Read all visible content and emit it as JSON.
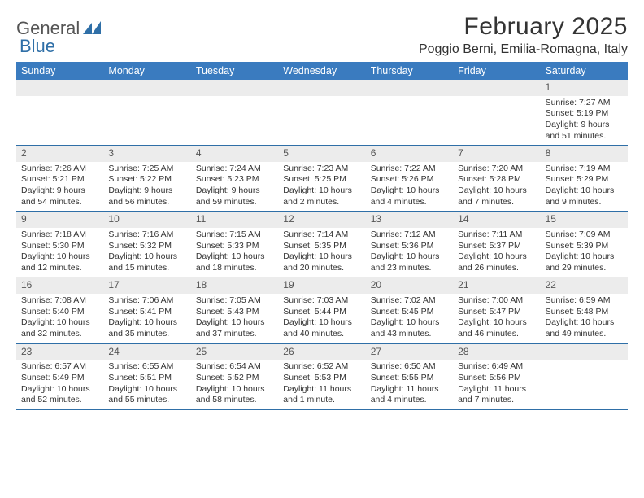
{
  "logo": {
    "text1": "General",
    "text2": "Blue"
  },
  "title": "February 2025",
  "location": "Poggio Berni, Emilia-Romagna, Italy",
  "colors": {
    "header_bg": "#3a7bbf",
    "header_text": "#ffffff",
    "daynum_bg": "#ececec",
    "border": "#2f6fa7",
    "logo_blue": "#2f6fa7",
    "text": "#333333"
  },
  "typography": {
    "title_fontsize": 30,
    "location_fontsize": 16,
    "weekday_fontsize": 12.5,
    "cell_fontsize": 10.5
  },
  "structure_type": "calendar",
  "weekdays": [
    "Sunday",
    "Monday",
    "Tuesday",
    "Wednesday",
    "Thursday",
    "Friday",
    "Saturday"
  ],
  "weeks": [
    [
      null,
      null,
      null,
      null,
      null,
      null,
      {
        "n": "1",
        "sunrise": "Sunrise: 7:27 AM",
        "sunset": "Sunset: 5:19 PM",
        "day1": "Daylight: 9 hours",
        "day2": "and 51 minutes."
      }
    ],
    [
      {
        "n": "2",
        "sunrise": "Sunrise: 7:26 AM",
        "sunset": "Sunset: 5:21 PM",
        "day1": "Daylight: 9 hours",
        "day2": "and 54 minutes."
      },
      {
        "n": "3",
        "sunrise": "Sunrise: 7:25 AM",
        "sunset": "Sunset: 5:22 PM",
        "day1": "Daylight: 9 hours",
        "day2": "and 56 minutes."
      },
      {
        "n": "4",
        "sunrise": "Sunrise: 7:24 AM",
        "sunset": "Sunset: 5:23 PM",
        "day1": "Daylight: 9 hours",
        "day2": "and 59 minutes."
      },
      {
        "n": "5",
        "sunrise": "Sunrise: 7:23 AM",
        "sunset": "Sunset: 5:25 PM",
        "day1": "Daylight: 10 hours",
        "day2": "and 2 minutes."
      },
      {
        "n": "6",
        "sunrise": "Sunrise: 7:22 AM",
        "sunset": "Sunset: 5:26 PM",
        "day1": "Daylight: 10 hours",
        "day2": "and 4 minutes."
      },
      {
        "n": "7",
        "sunrise": "Sunrise: 7:20 AM",
        "sunset": "Sunset: 5:28 PM",
        "day1": "Daylight: 10 hours",
        "day2": "and 7 minutes."
      },
      {
        "n": "8",
        "sunrise": "Sunrise: 7:19 AM",
        "sunset": "Sunset: 5:29 PM",
        "day1": "Daylight: 10 hours",
        "day2": "and 9 minutes."
      }
    ],
    [
      {
        "n": "9",
        "sunrise": "Sunrise: 7:18 AM",
        "sunset": "Sunset: 5:30 PM",
        "day1": "Daylight: 10 hours",
        "day2": "and 12 minutes."
      },
      {
        "n": "10",
        "sunrise": "Sunrise: 7:16 AM",
        "sunset": "Sunset: 5:32 PM",
        "day1": "Daylight: 10 hours",
        "day2": "and 15 minutes."
      },
      {
        "n": "11",
        "sunrise": "Sunrise: 7:15 AM",
        "sunset": "Sunset: 5:33 PM",
        "day1": "Daylight: 10 hours",
        "day2": "and 18 minutes."
      },
      {
        "n": "12",
        "sunrise": "Sunrise: 7:14 AM",
        "sunset": "Sunset: 5:35 PM",
        "day1": "Daylight: 10 hours",
        "day2": "and 20 minutes."
      },
      {
        "n": "13",
        "sunrise": "Sunrise: 7:12 AM",
        "sunset": "Sunset: 5:36 PM",
        "day1": "Daylight: 10 hours",
        "day2": "and 23 minutes."
      },
      {
        "n": "14",
        "sunrise": "Sunrise: 7:11 AM",
        "sunset": "Sunset: 5:37 PM",
        "day1": "Daylight: 10 hours",
        "day2": "and 26 minutes."
      },
      {
        "n": "15",
        "sunrise": "Sunrise: 7:09 AM",
        "sunset": "Sunset: 5:39 PM",
        "day1": "Daylight: 10 hours",
        "day2": "and 29 minutes."
      }
    ],
    [
      {
        "n": "16",
        "sunrise": "Sunrise: 7:08 AM",
        "sunset": "Sunset: 5:40 PM",
        "day1": "Daylight: 10 hours",
        "day2": "and 32 minutes."
      },
      {
        "n": "17",
        "sunrise": "Sunrise: 7:06 AM",
        "sunset": "Sunset: 5:41 PM",
        "day1": "Daylight: 10 hours",
        "day2": "and 35 minutes."
      },
      {
        "n": "18",
        "sunrise": "Sunrise: 7:05 AM",
        "sunset": "Sunset: 5:43 PM",
        "day1": "Daylight: 10 hours",
        "day2": "and 37 minutes."
      },
      {
        "n": "19",
        "sunrise": "Sunrise: 7:03 AM",
        "sunset": "Sunset: 5:44 PM",
        "day1": "Daylight: 10 hours",
        "day2": "and 40 minutes."
      },
      {
        "n": "20",
        "sunrise": "Sunrise: 7:02 AM",
        "sunset": "Sunset: 5:45 PM",
        "day1": "Daylight: 10 hours",
        "day2": "and 43 minutes."
      },
      {
        "n": "21",
        "sunrise": "Sunrise: 7:00 AM",
        "sunset": "Sunset: 5:47 PM",
        "day1": "Daylight: 10 hours",
        "day2": "and 46 minutes."
      },
      {
        "n": "22",
        "sunrise": "Sunrise: 6:59 AM",
        "sunset": "Sunset: 5:48 PM",
        "day1": "Daylight: 10 hours",
        "day2": "and 49 minutes."
      }
    ],
    [
      {
        "n": "23",
        "sunrise": "Sunrise: 6:57 AM",
        "sunset": "Sunset: 5:49 PM",
        "day1": "Daylight: 10 hours",
        "day2": "and 52 minutes."
      },
      {
        "n": "24",
        "sunrise": "Sunrise: 6:55 AM",
        "sunset": "Sunset: 5:51 PM",
        "day1": "Daylight: 10 hours",
        "day2": "and 55 minutes."
      },
      {
        "n": "25",
        "sunrise": "Sunrise: 6:54 AM",
        "sunset": "Sunset: 5:52 PM",
        "day1": "Daylight: 10 hours",
        "day2": "and 58 minutes."
      },
      {
        "n": "26",
        "sunrise": "Sunrise: 6:52 AM",
        "sunset": "Sunset: 5:53 PM",
        "day1": "Daylight: 11 hours",
        "day2": "and 1 minute."
      },
      {
        "n": "27",
        "sunrise": "Sunrise: 6:50 AM",
        "sunset": "Sunset: 5:55 PM",
        "day1": "Daylight: 11 hours",
        "day2": "and 4 minutes."
      },
      {
        "n": "28",
        "sunrise": "Sunrise: 6:49 AM",
        "sunset": "Sunset: 5:56 PM",
        "day1": "Daylight: 11 hours",
        "day2": "and 7 minutes."
      },
      null
    ]
  ]
}
